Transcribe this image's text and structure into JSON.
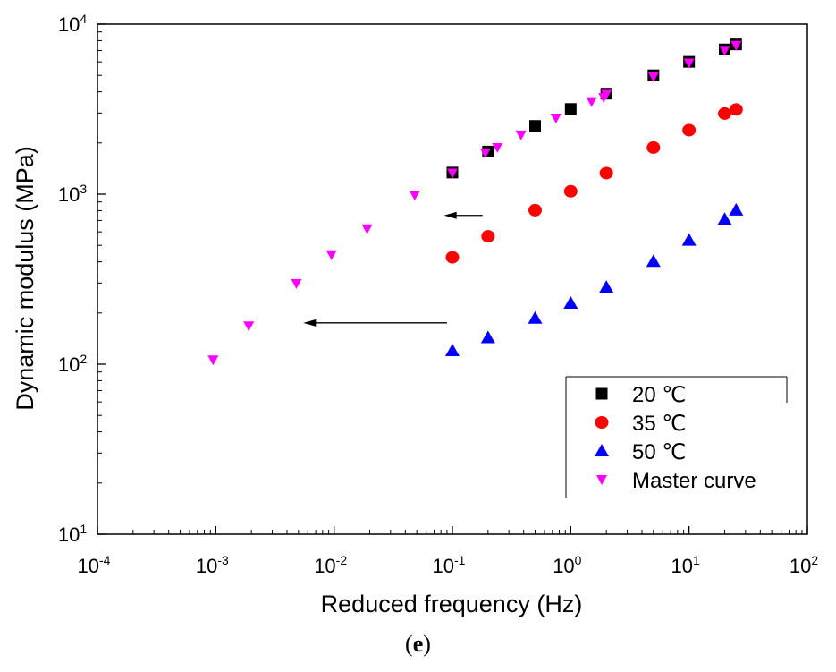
{
  "chart_data": {
    "type": "scatter",
    "xscale": "log",
    "yscale": "log",
    "xlabel": "Reduced frequency (Hz)",
    "ylabel": "Dynamic modulus (MPa)",
    "xlim": [
      0.0001,
      100
    ],
    "ylim": [
      10,
      10000
    ],
    "x_ticks": [
      {
        "base": "10",
        "exp": "-4"
      },
      {
        "base": "10",
        "exp": "-3"
      },
      {
        "base": "10",
        "exp": "-2"
      },
      {
        "base": "10",
        "exp": "-1"
      },
      {
        "base": "10",
        "exp": "0"
      },
      {
        "base": "10",
        "exp": "1"
      },
      {
        "base": "10",
        "exp": "2"
      }
    ],
    "y_ticks": [
      {
        "base": "10",
        "exp": "1"
      },
      {
        "base": "10",
        "exp": "2"
      },
      {
        "base": "10",
        "exp": "3"
      },
      {
        "base": "10",
        "exp": "4"
      }
    ],
    "legend_position": "bottom-right",
    "series": [
      {
        "name": "20 ℃",
        "marker": "square",
        "color": "#000000",
        "x": [
          0.1,
          0.2,
          0.5,
          1,
          2,
          5,
          10,
          20,
          25
        ],
        "y": [
          1340,
          1780,
          2520,
          3170,
          3900,
          5000,
          6000,
          7100,
          7600
        ]
      },
      {
        "name": "35 ℃",
        "marker": "circle",
        "color": "#ff0000",
        "x": [
          0.1,
          0.2,
          0.5,
          1,
          2,
          5,
          10,
          20,
          25
        ],
        "y": [
          425,
          565,
          805,
          1040,
          1330,
          1880,
          2380,
          2980,
          3150
        ]
      },
      {
        "name": "50 ℃",
        "marker": "triangle-up",
        "color": "#0000ff",
        "x": [
          0.1,
          0.2,
          0.5,
          1,
          2,
          5,
          10,
          20,
          25
        ],
        "y": [
          120,
          143,
          186,
          228,
          283,
          402,
          535,
          710,
          805
        ]
      },
      {
        "name": "Master curve",
        "marker": "triangle-down",
        "color": "#ff00ff",
        "x": [
          0.00095,
          0.0019,
          0.0048,
          0.0095,
          0.019,
          0.048,
          0.1,
          0.19,
          0.24,
          0.38,
          0.75,
          1.5,
          1.9,
          2.0,
          5,
          10,
          20,
          25
        ],
        "y": [
          106,
          168,
          298,
          440,
          625,
          985,
          1330,
          1750,
          1880,
          2230,
          2800,
          3500,
          3700,
          3860,
          4900,
          5900,
          7000,
          7500
        ]
      }
    ],
    "annotations": [
      {
        "type": "arrow",
        "from": [
          0.18,
          750
        ],
        "to": [
          0.085,
          750
        ]
      },
      {
        "type": "arrow",
        "from": [
          0.09,
          175
        ],
        "to": [
          0.0055,
          175
        ]
      }
    ]
  },
  "panel_label": "e"
}
